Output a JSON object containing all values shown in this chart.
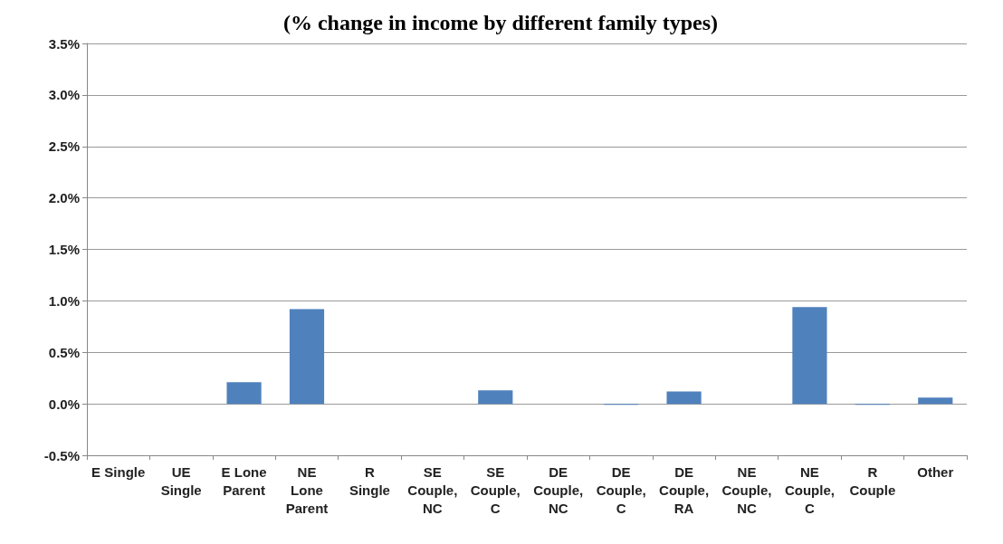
{
  "chart_data": {
    "type": "bar",
    "title": "(% change in income by different family types)",
    "categories": [
      "E Single",
      "UE\nSingle",
      "E Lone\nParent",
      "NE\nLone\nParent",
      "R\nSingle",
      "SE\nCouple,\nNC",
      "SE\nCouple,\nC",
      "DE\nCouple,\nNC",
      "DE\nCouple,\nC",
      "DE\nCouple,\nRA",
      "NE\nCouple,\nNC",
      "NE\nCouple,\nC",
      "R\nCouple",
      "Other"
    ],
    "values": [
      0,
      0,
      0.21,
      0.92,
      0,
      0,
      0.13,
      0,
      -0.01,
      0.12,
      0,
      0.94,
      -0.01,
      0.06
    ],
    "color": "#4f81bd",
    "ylim": [
      -0.5,
      3.5
    ],
    "yticks": [
      {
        "value": -0.5,
        "label": "-0.5%"
      },
      {
        "value": 0,
        "label": "0.0%"
      },
      {
        "value": 0.5,
        "label": "0.5%"
      },
      {
        "value": 1,
        "label": "1.0%"
      },
      {
        "value": 1.5,
        "label": "1.5%"
      },
      {
        "value": 2,
        "label": "2.0%"
      },
      {
        "value": 2.5,
        "label": "2.5%"
      },
      {
        "value": 3,
        "label": "3.0%"
      },
      {
        "value": 3.5,
        "label": "3.5%"
      }
    ],
    "grid": "y"
  }
}
